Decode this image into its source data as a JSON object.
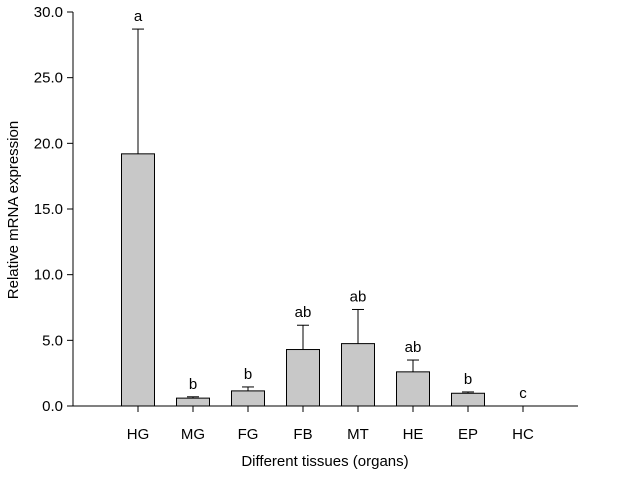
{
  "chart_data": {
    "type": "bar",
    "title": "",
    "xlabel": "Different tissues (organs)",
    "ylabel": "Relative mRNA expression",
    "ylim": [
      0,
      30
    ],
    "yticks": [
      "0.0",
      "5.0",
      "10.0",
      "15.0",
      "20.0",
      "25.0",
      "30.0"
    ],
    "categories": [
      "HG",
      "MG",
      "FG",
      "FB",
      "MT",
      "HE",
      "EP",
      "HC"
    ],
    "values": [
      19.2,
      0.6,
      1.15,
      4.3,
      4.75,
      2.6,
      0.97,
      0
    ],
    "error_upper": [
      28.7,
      0.7,
      1.45,
      6.15,
      7.35,
      3.5,
      1.07,
      0
    ],
    "significance_letters": [
      "a",
      "b",
      "b",
      "ab",
      "ab",
      "ab",
      "b",
      "c"
    ],
    "bar_color": "#c8c8c8",
    "grid": false
  }
}
